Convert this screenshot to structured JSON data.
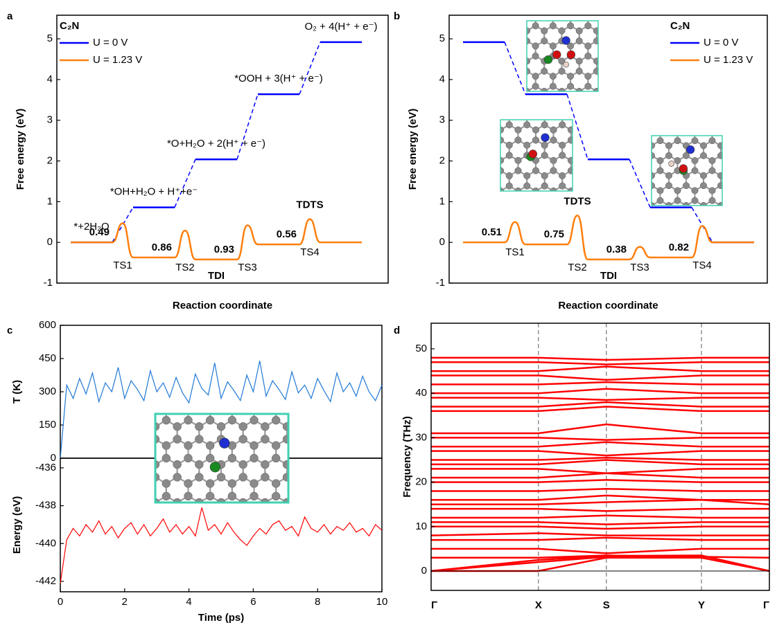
{
  "chart_data": [
    {
      "type": "energy_profile",
      "panel": "a",
      "ylabel": "Free energy (eV)",
      "xlabel": "Reaction coordinate",
      "ylim": [
        -1,
        5.58
      ],
      "yticks": [
        -1,
        0,
        1,
        2,
        3,
        4,
        5
      ],
      "legend": "upper left",
      "legend_title": "C₂N",
      "states": [
        "*+2H₂O",
        "*OH+H₂O + H⁺+e⁻",
        "*O+H₂O + 2(H⁺ + e⁻)",
        "*OOH + 3(H⁺ + e⁻)",
        "O₂ + 4(H⁺ + e⁻)"
      ],
      "series": [
        {
          "name": "U = 0 V",
          "color": "#0000ff",
          "values": [
            0,
            0.86,
            2.04,
            3.64,
            4.92
          ]
        },
        {
          "name": "U = 1.23 V",
          "color": "#ff7f0e",
          "values": [
            0,
            -0.37,
            -0.42,
            -0.05,
            0
          ],
          "ts_values": [
            0.47,
            0.29,
            0.42,
            0.57
          ],
          "ts_labels": [
            "TS1",
            "TS2",
            "TS3",
            "TS4"
          ],
          "barrier_labels": [
            "0.49",
            "0.86",
            "0.93",
            "0.56"
          ]
        }
      ],
      "tdi_label": "TDI",
      "tdts_label": "TDTS"
    },
    {
      "type": "energy_profile",
      "panel": "b",
      "ylabel": "Free energy (eV)",
      "xlabel": "Reaction coordinate",
      "ylim": [
        -1,
        5.58
      ],
      "yticks": [
        -1,
        0,
        1,
        2,
        3,
        4,
        5
      ],
      "legend": "upper right",
      "legend_title": "C₂N",
      "series": [
        {
          "name": "U = 0 V",
          "color": "#0000ff",
          "values": [
            4.92,
            3.64,
            2.04,
            0.86,
            0
          ]
        },
        {
          "name": "U = 1.23 V",
          "color": "#ff7f0e",
          "values": [
            0,
            -0.05,
            -0.42,
            -0.37,
            0
          ],
          "ts_values": [
            0.5,
            0.66,
            -0.11,
            0.4
          ],
          "ts_labels": [
            "TS1",
            "TS2",
            "TS3",
            "TS4"
          ],
          "barrier_labels": [
            "0.51",
            "0.75",
            "0.38",
            "0.82"
          ]
        }
      ],
      "tdi_label": "TDI",
      "tdts_label": "TDTS"
    },
    {
      "type": "line",
      "panel": "c",
      "ylabel": "T (K)",
      "xlim": [
        0,
        10
      ],
      "ylim": [
        0,
        600
      ],
      "yticks": [
        0,
        150,
        300,
        450,
        600
      ],
      "x": [
        0,
        0.2,
        0.4,
        0.6,
        0.8,
        1,
        1.2,
        1.4,
        1.6,
        1.8,
        2,
        2.2,
        2.4,
        2.6,
        2.8,
        3,
        3.2,
        3.4,
        3.6,
        3.8,
        4,
        4.2,
        4.4,
        4.6,
        4.8,
        5,
        5.2,
        5.4,
        5.6,
        5.8,
        6,
        6.2,
        6.4,
        6.6,
        6.8,
        7,
        7.2,
        7.4,
        7.6,
        7.8,
        8,
        8.2,
        8.4,
        8.6,
        8.8,
        9,
        9.2,
        9.4,
        9.6,
        9.8,
        10
      ],
      "series": [
        {
          "color": "#1f78d6",
          "values": [
            0,
            330,
            270,
            360,
            290,
            385,
            255,
            340,
            300,
            410,
            270,
            350,
            310,
            260,
            395,
            300,
            340,
            275,
            365,
            295,
            250,
            380,
            315,
            285,
            430,
            270,
            345,
            305,
            260,
            375,
            300,
            440,
            280,
            350,
            310,
            265,
            390,
            295,
            330,
            270,
            360,
            305,
            255,
            385,
            300,
            340,
            280,
            370,
            300,
            260,
            330
          ]
        }
      ]
    },
    {
      "type": "line",
      "ylabel": "Energy (eV)",
      "xlabel": "Time (ps)",
      "xlim": [
        0,
        10
      ],
      "xticks": [
        0,
        2,
        4,
        6,
        8,
        10
      ],
      "ylim": [
        -442.55,
        -435.49
      ],
      "yticks": [
        -436,
        -438,
        -440,
        -442
      ],
      "x": [
        0,
        0.2,
        0.4,
        0.6,
        0.8,
        1,
        1.2,
        1.4,
        1.6,
        1.8,
        2,
        2.2,
        2.4,
        2.6,
        2.8,
        3,
        3.2,
        3.4,
        3.6,
        3.8,
        4,
        4.2,
        4.4,
        4.6,
        4.8,
        5,
        5.2,
        5.4,
        5.6,
        5.8,
        6,
        6.2,
        6.4,
        6.6,
        6.8,
        7,
        7.2,
        7.4,
        7.6,
        7.8,
        8,
        8.2,
        8.4,
        8.6,
        8.8,
        9,
        9.2,
        9.4,
        9.6,
        9.8,
        10
      ],
      "series": [
        {
          "color": "#ff0000",
          "values": [
            -442.1,
            -439.8,
            -439.2,
            -439.6,
            -439.0,
            -439.4,
            -438.8,
            -439.5,
            -439.1,
            -439.7,
            -439.2,
            -438.9,
            -439.5,
            -439.0,
            -439.6,
            -439.2,
            -438.7,
            -439.4,
            -439.0,
            -439.5,
            -439.1,
            -439.6,
            -438.1,
            -439.3,
            -439.0,
            -439.5,
            -438.9,
            -439.4,
            -439.8,
            -440.1,
            -439.6,
            -439.2,
            -439.5,
            -439.0,
            -438.8,
            -439.3,
            -439.1,
            -439.6,
            -438.6,
            -439.2,
            -439.4,
            -439.0,
            -439.5,
            -439.1,
            -439.3,
            -438.9,
            -439.4,
            -439.2,
            -439.6,
            -439.0,
            -439.3
          ]
        }
      ]
    },
    {
      "type": "bands",
      "panel": "d",
      "ylabel": "Frequency (THz)",
      "color": "#ff0000",
      "xlim": [
        0,
        4.98
      ],
      "x": [
        0,
        1.58,
        2.58,
        3.98,
        4.98
      ],
      "xticks": [
        {
          "value": 0,
          "label": "Γ"
        },
        {
          "value": 1.58,
          "label": "X"
        },
        {
          "value": 2.58,
          "label": "S"
        },
        {
          "value": 3.98,
          "label": "Y"
        },
        {
          "value": 4.98,
          "label": "Γ"
        }
      ],
      "ylim": [
        -4.36,
        55.76
      ],
      "yticks": [
        0,
        10,
        20,
        30,
        40,
        50
      ],
      "bands": [
        [
          0,
          0,
          3,
          3,
          0
        ],
        [
          0,
          2,
          3.2,
          3,
          0
        ],
        [
          0,
          2.5,
          3.4,
          3.5,
          0
        ],
        [
          3,
          3,
          3.5,
          3.2,
          3
        ],
        [
          5,
          5,
          4,
          5,
          5
        ],
        [
          7,
          7,
          7.5,
          7,
          7
        ],
        [
          8,
          8.5,
          8,
          8,
          8
        ],
        [
          10,
          10,
          9.5,
          10,
          10
        ],
        [
          11,
          11,
          10.5,
          11,
          11
        ],
        [
          12,
          12,
          12.5,
          12,
          12
        ],
        [
          14,
          14,
          13.5,
          14,
          14
        ],
        [
          15,
          15,
          15.5,
          16,
          15
        ],
        [
          16,
          16,
          17,
          16,
          16
        ],
        [
          18,
          18,
          18.5,
          18,
          18
        ],
        [
          20,
          20,
          20.5,
          20,
          20
        ],
        [
          21,
          21,
          22,
          21,
          21
        ],
        [
          23,
          23,
          22,
          23,
          23
        ],
        [
          24,
          24,
          25,
          24,
          24
        ],
        [
          25,
          25,
          25.5,
          25,
          25
        ],
        [
          27,
          27,
          26,
          27,
          27
        ],
        [
          28,
          28,
          29,
          28,
          28
        ],
        [
          30,
          30,
          29.5,
          30,
          30
        ],
        [
          31,
          31,
          33,
          31,
          31
        ],
        [
          36,
          36,
          37,
          36,
          36
        ],
        [
          37,
          37,
          38,
          37,
          37
        ],
        [
          39,
          39,
          38.5,
          39,
          39
        ],
        [
          40,
          40,
          41,
          40,
          40
        ],
        [
          42,
          42,
          42.5,
          42,
          42
        ],
        [
          44,
          44,
          43,
          44,
          44
        ],
        [
          45,
          45,
          46,
          45,
          45
        ],
        [
          47,
          47,
          46.5,
          47,
          47
        ],
        [
          48,
          48,
          47.5,
          48,
          48
        ]
      ]
    }
  ]
}
